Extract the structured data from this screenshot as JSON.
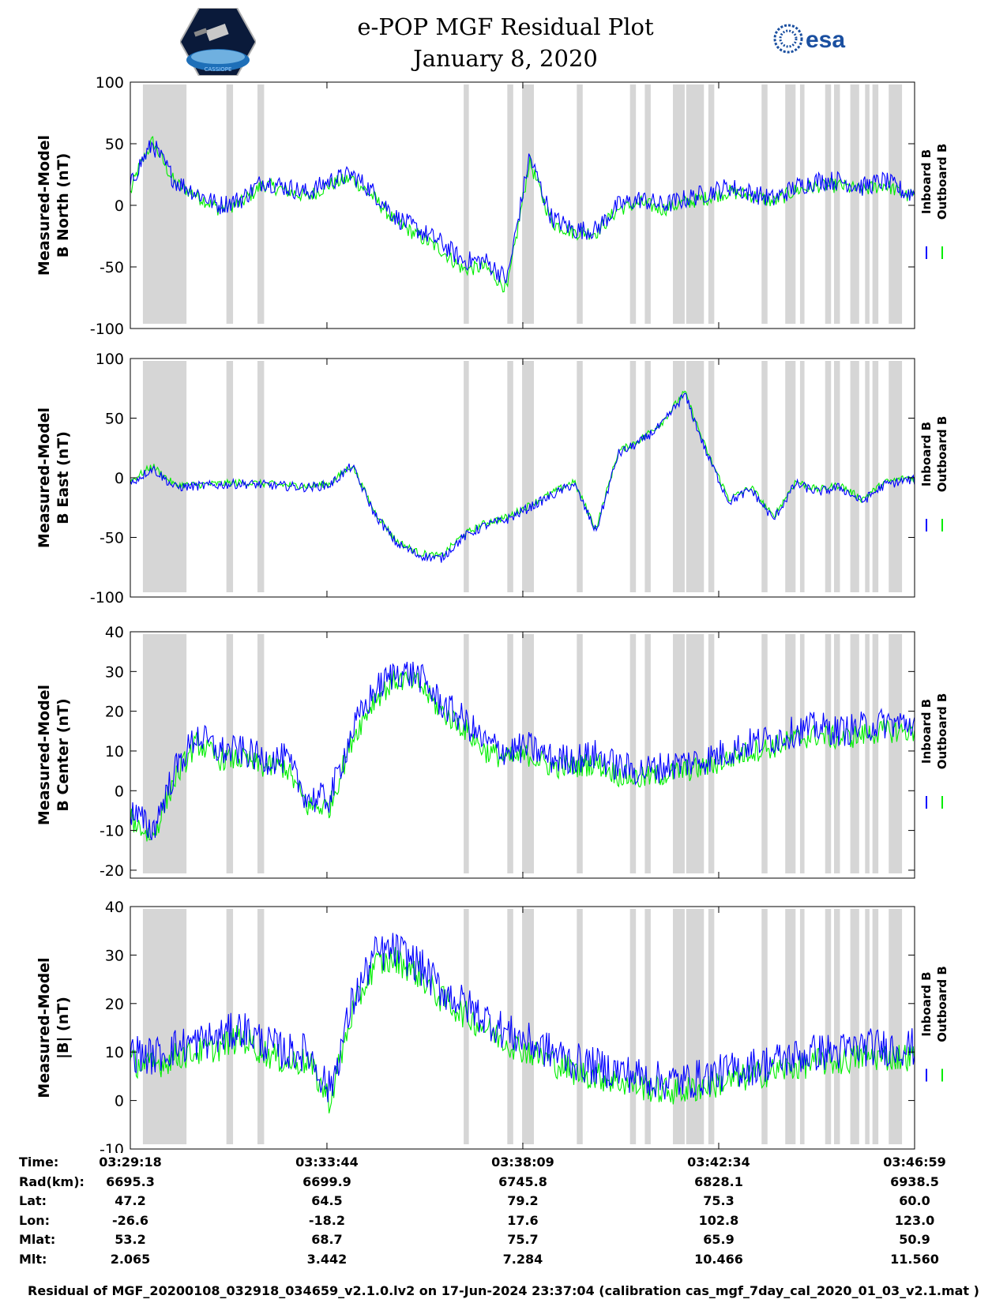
{
  "header": {
    "title": "e-POP MGF Residual Plot",
    "date": "January 8, 2020",
    "logo_left_text": "CASSIOPE",
    "logo_right_text": "esa"
  },
  "colors": {
    "inboard": "#0000ff",
    "outboard": "#00ee00",
    "shade": "#d6d6d6"
  },
  "chart_data": [
    {
      "type": "line",
      "ylabel_line1": "Measured-Model",
      "ylabel_line2": "B North (nT)",
      "ylim": [
        -100,
        100
      ],
      "yticks": [
        -100,
        -50,
        0,
        50,
        100
      ],
      "legend": [
        "Inboard B",
        "Outboard B"
      ],
      "x_seconds": [
        0,
        10,
        30,
        60,
        90,
        120,
        150,
        180,
        210,
        240,
        270,
        300,
        330,
        360,
        390,
        420,
        450,
        480,
        510,
        540,
        570,
        600,
        630,
        660,
        690,
        720,
        750,
        780,
        810,
        840,
        870,
        900,
        930,
        960,
        990,
        1020,
        1050
      ],
      "series": [
        {
          "name": "Inboard B",
          "values": [
            15,
            30,
            50,
            20,
            10,
            0,
            5,
            20,
            15,
            10,
            20,
            25,
            10,
            -10,
            -20,
            -30,
            -45,
            -45,
            -60,
            40,
            -10,
            -20,
            -20,
            0,
            5,
            0,
            5,
            10,
            15,
            10,
            5,
            15,
            20,
            20,
            15,
            20,
            10
          ],
          "noise": 8
        },
        {
          "name": "Outboard B",
          "values": [
            10,
            28,
            52,
            18,
            8,
            -3,
            2,
            17,
            12,
            7,
            17,
            22,
            6,
            -14,
            -25,
            -36,
            -52,
            -50,
            -68,
            36,
            -14,
            -22,
            -22,
            -3,
            2,
            -3,
            2,
            6,
            11,
            8,
            3,
            12,
            16,
            16,
            12,
            17,
            8
          ],
          "noise": 6
        }
      ]
    },
    {
      "type": "line",
      "ylabel_line1": "Measured-Model",
      "ylabel_line2": "B East (nT)",
      "ylim": [
        -100,
        100
      ],
      "yticks": [
        -100,
        -50,
        0,
        50,
        100
      ],
      "legend": [
        "Inboard B",
        "Outboard B"
      ],
      "x_seconds": [
        0,
        30,
        60,
        90,
        120,
        150,
        180,
        210,
        240,
        270,
        300,
        330,
        360,
        390,
        420,
        450,
        480,
        510,
        540,
        570,
        600,
        630,
        660,
        690,
        720,
        750,
        780,
        810,
        840,
        870,
        900,
        930,
        960,
        990,
        1020,
        1050
      ],
      "series": [
        {
          "name": "Inboard B",
          "values": [
            -5,
            8,
            -8,
            -7,
            -6,
            -5,
            -6,
            -7,
            -8,
            -6,
            10,
            -30,
            -55,
            -65,
            -68,
            -50,
            -40,
            -35,
            -25,
            -15,
            -5,
            -45,
            20,
            30,
            45,
            70,
            20,
            -20,
            -10,
            -35,
            -5,
            -12,
            -8,
            -20,
            -6,
            -2
          ],
          "noise": 4
        },
        {
          "name": "Outboard B",
          "values": [
            -3,
            10,
            -6,
            -6,
            -5,
            -4,
            -5,
            -6,
            -7,
            -5,
            11,
            -28,
            -53,
            -63,
            -66,
            -48,
            -38,
            -33,
            -23,
            -13,
            -3,
            -43,
            22,
            32,
            47,
            72,
            22,
            -18,
            -8,
            -33,
            -3,
            -10,
            -6,
            -18,
            -4,
            0
          ],
          "noise": 3
        }
      ]
    },
    {
      "type": "line",
      "ylabel_line1": "Measured-Model",
      "ylabel_line2": "B Center (nT)",
      "ylim": [
        -22,
        40
      ],
      "yticks": [
        -20,
        -10,
        0,
        10,
        20,
        30,
        40
      ],
      "legend": [
        "Inboard B",
        "Outboard B"
      ],
      "x_seconds": [
        0,
        30,
        60,
        90,
        120,
        150,
        180,
        210,
        240,
        270,
        300,
        330,
        360,
        390,
        420,
        450,
        480,
        510,
        540,
        570,
        600,
        630,
        660,
        690,
        720,
        750,
        780,
        810,
        840,
        870,
        900,
        930,
        960,
        990,
        1020,
        1050
      ],
      "series": [
        {
          "name": "Inboard B",
          "values": [
            -5,
            -10,
            5,
            14,
            10,
            10,
            8,
            8,
            -2,
            -2,
            15,
            25,
            30,
            29,
            22,
            18,
            12,
            10,
            11,
            8,
            8,
            9,
            6,
            5,
            6,
            7,
            8,
            10,
            12,
            13,
            15,
            16,
            15,
            16,
            17,
            17
          ],
          "noise": 4
        },
        {
          "name": "Outboard B",
          "values": [
            -7,
            -12,
            3,
            12,
            8,
            8,
            6,
            6,
            -4,
            -4,
            13,
            23,
            28,
            27,
            20,
            16,
            10,
            8,
            9,
            6,
            6,
            7,
            4,
            3,
            4,
            5,
            6,
            8,
            10,
            11,
            13,
            14,
            13,
            14,
            15,
            15
          ],
          "noise": 3
        }
      ]
    },
    {
      "type": "line",
      "ylabel_line1": "Measured-Model",
      "ylabel_line2": "|B| (nT)",
      "ylim": [
        -10,
        40
      ],
      "yticks": [
        -10,
        0,
        10,
        20,
        30,
        40
      ],
      "legend": [
        "Inboard B",
        "Outboard B"
      ],
      "x_seconds": [
        0,
        30,
        60,
        90,
        120,
        150,
        180,
        210,
        240,
        270,
        300,
        330,
        360,
        390,
        420,
        450,
        480,
        510,
        540,
        570,
        600,
        630,
        660,
        690,
        720,
        750,
        780,
        810,
        840,
        870,
        900,
        930,
        960,
        990,
        1020,
        1050
      ],
      "series": [
        {
          "name": "Inboard B",
          "values": [
            10,
            9,
            11,
            12,
            13,
            15,
            12,
            10,
            10,
            2,
            20,
            30,
            31,
            28,
            23,
            20,
            17,
            14,
            12,
            10,
            8,
            7,
            6,
            5,
            4,
            4,
            5,
            6,
            7,
            8,
            9,
            10,
            10,
            11,
            11,
            11
          ],
          "noise": 4
        },
        {
          "name": "Outboard B",
          "values": [
            8,
            7,
            9,
            10,
            11,
            13,
            10,
            8,
            8,
            0,
            18,
            28,
            29,
            26,
            21,
            18,
            15,
            12,
            10,
            8,
            6,
            5,
            4,
            3,
            2,
            2,
            3,
            4,
            5,
            6,
            7,
            8,
            8,
            9,
            9,
            9
          ],
          "noise": 3
        }
      ]
    }
  ],
  "time_axis": {
    "total_seconds": 1061,
    "tick_seconds": [
      0,
      266,
      531,
      796,
      1061
    ]
  },
  "shade_regions_seconds": [
    [
      17,
      76
    ],
    [
      130,
      139
    ],
    [
      172,
      181
    ],
    [
      451,
      458
    ],
    [
      510,
      518
    ],
    [
      530,
      546
    ],
    [
      604,
      612
    ],
    [
      676,
      684
    ],
    [
      696,
      704
    ],
    [
      734,
      750
    ],
    [
      752,
      776
    ],
    [
      782,
      790
    ],
    [
      854,
      862
    ],
    [
      886,
      900
    ],
    [
      906,
      912
    ],
    [
      940,
      948
    ],
    [
      952,
      960
    ],
    [
      974,
      986
    ],
    [
      994,
      1000
    ],
    [
      1004,
      1012
    ],
    [
      1026,
      1044
    ]
  ],
  "info": {
    "labels": [
      "Time:",
      "Rad(km):",
      "Lat:",
      "Lon:",
      "Mlat:",
      "Mlt:"
    ],
    "columns": [
      [
        "03:29:18",
        "6695.3",
        "47.2",
        "-26.6",
        "53.2",
        "2.065"
      ],
      [
        "03:33:44",
        "6699.9",
        "64.5",
        "-18.2",
        "68.7",
        "3.442"
      ],
      [
        "03:38:09",
        "6745.8",
        "79.2",
        "17.6",
        "75.7",
        "7.284"
      ],
      [
        "03:42:34",
        "6828.1",
        "75.3",
        "102.8",
        "65.9",
        "10.466"
      ],
      [
        "03:46:59",
        "6938.5",
        "60.0",
        "123.0",
        "50.9",
        "11.560"
      ]
    ]
  },
  "footer": "Residual of MGF_20200108_032918_034659_v2.1.0.lv2 on 17-Jun-2024 23:37:04 (calibration cas_mgf_7day_cal_2020_01_03_v2.1.mat )"
}
